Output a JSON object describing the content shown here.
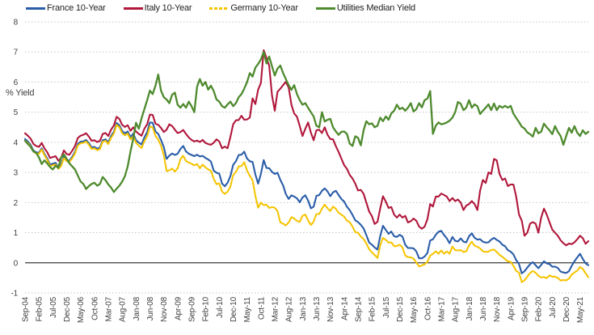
{
  "chart_data": {
    "type": "line",
    "title": "",
    "ylabel": "% Yield",
    "xlabel": "",
    "ylim": [
      -1,
      8
    ],
    "yticks": [
      8,
      7,
      6,
      5,
      4,
      3,
      2,
      1,
      0,
      -1
    ],
    "grid": "horizontal-dotted",
    "grid_color": "#c6c6c6",
    "zero_line_color": "#3c3c3c",
    "tick_text_color": "#3f3f3f",
    "legend_position": "top-left",
    "x_frequency": "monthly",
    "x_first_month": "Sep-04",
    "tick_every_n_points": 5,
    "tick_labels": [
      "Sep-04",
      "Feb-05",
      "Jul-05",
      "Dec-05",
      "May-06",
      "Oct-06",
      "Mar-07",
      "Aug-07",
      "Jan-08",
      "Jun-08",
      "Nov-08",
      "Apr-09",
      "Sep-09",
      "Feb-10",
      "Jul-10",
      "Dec-10",
      "May-11",
      "Oct-11",
      "Mar-12",
      "Aug-12",
      "Jan-13",
      "Jun-13",
      "Nov-13",
      "Apr-14",
      "Sep-14",
      "Feb-15",
      "Jul-15",
      "Dec-15",
      "May-16",
      "Oct-16",
      "Mar-17",
      "Aug-17",
      "Jan-18",
      "Jun-18",
      "Nov-18",
      "Apr-19",
      "Sep-19",
      "Feb-20",
      "Jul-20",
      "Dec-20",
      "May-21"
    ],
    "series": [
      {
        "name": "France 10-Year",
        "color": "#2A5DA8",
        "style": "solid",
        "values": [
          4.11,
          4.03,
          3.92,
          3.73,
          3.67,
          3.65,
          3.8,
          3.61,
          3.46,
          3.26,
          3.29,
          3.32,
          3.17,
          3.26,
          3.53,
          3.41,
          3.39,
          3.52,
          3.68,
          3.94,
          4.02,
          4.03,
          4.08,
          3.97,
          3.83,
          3.85,
          3.79,
          3.83,
          4.07,
          4.1,
          4.0,
          4.21,
          4.35,
          4.64,
          4.57,
          4.37,
          4.3,
          4.36,
          4.17,
          4.29,
          4.07,
          3.99,
          3.93,
          4.16,
          4.34,
          4.66,
          4.65,
          4.36,
          4.28,
          4.08,
          3.84,
          3.45,
          3.56,
          3.63,
          3.58,
          3.62,
          3.78,
          3.88,
          3.7,
          3.62,
          3.58,
          3.54,
          3.59,
          3.53,
          3.55,
          3.48,
          3.43,
          3.36,
          3.06,
          2.99,
          2.96,
          2.63,
          2.54,
          2.66,
          2.88,
          3.25,
          3.37,
          3.58,
          3.59,
          3.69,
          3.46,
          3.37,
          3.35,
          2.93,
          2.63,
          2.95,
          3.41,
          3.15,
          3.14,
          3.02,
          2.95,
          2.99,
          2.75,
          2.57,
          2.28,
          2.12,
          2.24,
          2.2,
          2.14,
          2.01,
          2.17,
          2.24,
          2.07,
          1.81,
          1.86,
          2.22,
          2.25,
          2.39,
          2.47,
          2.37,
          2.21,
          2.34,
          2.39,
          2.25,
          2.12,
          2.03,
          1.86,
          1.75,
          1.59,
          1.41,
          1.35,
          1.26,
          1.14,
          0.92,
          0.67,
          0.6,
          0.51,
          0.44,
          0.89,
          1.23,
          1.09,
          0.96,
          1.04,
          0.88,
          0.86,
          0.93,
          0.87,
          0.6,
          0.49,
          0.49,
          0.48,
          0.38,
          0.15,
          0.15,
          0.21,
          0.33,
          0.74,
          0.78,
          0.93,
          1.03,
          1.06,
          0.92,
          0.81,
          0.65,
          0.86,
          0.73,
          0.71,
          0.81,
          0.7,
          0.68,
          0.88,
          0.98,
          0.83,
          0.77,
          0.78,
          0.7,
          0.67,
          0.68,
          0.77,
          0.83,
          0.76,
          0.71,
          0.6,
          0.55,
          0.42,
          0.37,
          0.28,
          0.09,
          -0.04,
          -0.35,
          -0.28,
          -0.16,
          -0.05,
          0.02,
          -0.08,
          -0.18,
          -0.07,
          0.05,
          -0.02,
          -0.04,
          -0.13,
          -0.13,
          -0.17,
          -0.29,
          -0.32,
          -0.34,
          -0.28,
          -0.1,
          0.05,
          0.18,
          0.3,
          0.13,
          -0.02,
          -0.08
        ]
      },
      {
        "name": "Italy 10-Year",
        "color": "#B0173B",
        "style": "solid",
        "values": [
          4.3,
          4.22,
          4.12,
          3.95,
          3.88,
          3.85,
          3.98,
          3.8,
          3.67,
          3.48,
          3.51,
          3.54,
          3.39,
          3.48,
          3.73,
          3.61,
          3.59,
          3.72,
          3.88,
          4.14,
          4.22,
          4.25,
          4.3,
          4.19,
          4.05,
          4.07,
          4.01,
          4.05,
          4.28,
          4.31,
          4.21,
          4.42,
          4.56,
          4.85,
          4.78,
          4.58,
          4.51,
          4.57,
          4.38,
          4.5,
          4.36,
          4.28,
          4.22,
          4.45,
          4.6,
          4.92,
          4.91,
          4.62,
          4.58,
          4.48,
          4.34,
          4.42,
          4.6,
          4.54,
          4.42,
          4.31,
          4.34,
          4.41,
          4.28,
          4.16,
          4.08,
          4.03,
          4.06,
          4.01,
          4.08,
          3.98,
          3.94,
          3.92,
          3.99,
          4.1,
          4.03,
          3.8,
          3.86,
          3.8,
          4.18,
          4.6,
          4.73,
          4.74,
          4.88,
          4.75,
          4.76,
          4.82,
          5.46,
          5.27,
          5.75,
          5.97,
          7.06,
          6.81,
          6.54,
          5.55,
          5.05,
          5.68,
          5.78,
          5.9,
          6.01,
          5.82,
          5.25,
          4.96,
          4.85,
          4.54,
          4.21,
          4.45,
          4.66,
          4.32,
          4.07,
          4.4,
          4.42,
          4.31,
          4.5,
          4.25,
          4.11,
          4.1,
          3.87,
          3.68,
          3.46,
          3.24,
          3.12,
          2.92,
          2.8,
          2.63,
          2.4,
          2.42,
          2.29,
          2.0,
          1.7,
          1.55,
          1.29,
          1.36,
          1.81,
          2.21,
          2.03,
          1.82,
          1.85,
          1.6,
          1.5,
          1.6,
          1.5,
          1.56,
          1.34,
          1.38,
          1.47,
          1.4,
          1.2,
          1.13,
          1.2,
          1.45,
          1.95,
          1.87,
          2.2,
          2.2,
          2.3,
          2.25,
          2.2,
          2.05,
          2.15,
          2.05,
          2.1,
          2.0,
          1.75,
          1.9,
          1.95,
          2.05,
          1.95,
          1.75,
          2.4,
          2.75,
          2.65,
          3.0,
          2.95,
          3.45,
          3.4,
          2.95,
          2.75,
          2.8,
          2.55,
          2.6,
          2.6,
          2.2,
          1.6,
          1.4,
          0.9,
          1.0,
          1.3,
          1.35,
          1.3,
          1.0,
          1.5,
          1.8,
          1.6,
          1.35,
          1.1,
          1.0,
          0.9,
          0.75,
          0.65,
          0.58,
          0.64,
          0.62,
          0.68,
          0.78,
          0.9,
          0.82,
          0.63,
          0.72
        ]
      },
      {
        "name": "Germany 10-Year",
        "color": "#F5C400",
        "style": "dashed",
        "values": [
          4.05,
          3.98,
          3.87,
          3.69,
          3.63,
          3.62,
          3.76,
          3.57,
          3.41,
          3.21,
          3.24,
          3.27,
          3.12,
          3.21,
          3.48,
          3.37,
          3.35,
          3.47,
          3.63,
          3.89,
          3.97,
          3.98,
          4.03,
          3.92,
          3.78,
          3.8,
          3.74,
          3.78,
          4.02,
          4.05,
          3.94,
          4.15,
          4.29,
          4.58,
          4.5,
          4.3,
          4.23,
          4.29,
          4.09,
          4.21,
          3.98,
          3.89,
          3.81,
          4.04,
          4.2,
          4.52,
          4.5,
          4.21,
          4.09,
          3.89,
          3.57,
          3.05,
          3.07,
          3.13,
          3.03,
          3.14,
          3.44,
          3.55,
          3.38,
          3.33,
          3.29,
          3.23,
          3.28,
          3.14,
          3.26,
          3.17,
          3.1,
          3.06,
          2.78,
          2.61,
          2.64,
          2.36,
          2.29,
          2.36,
          2.53,
          2.91,
          3.02,
          3.2,
          3.21,
          3.34,
          3.06,
          2.89,
          2.74,
          2.22,
          1.83,
          2.0,
          1.91,
          1.93,
          1.82,
          1.85,
          1.83,
          1.72,
          1.34,
          1.3,
          1.24,
          1.34,
          1.52,
          1.47,
          1.39,
          1.36,
          1.56,
          1.6,
          1.41,
          1.25,
          1.37,
          1.62,
          1.62,
          1.8,
          1.93,
          1.81,
          1.72,
          1.87,
          1.79,
          1.66,
          1.6,
          1.53,
          1.4,
          1.35,
          1.2,
          1.02,
          1.0,
          0.87,
          0.79,
          0.64,
          0.45,
          0.35,
          0.26,
          0.16,
          0.58,
          0.83,
          0.76,
          0.67,
          0.68,
          0.55,
          0.56,
          0.6,
          0.51,
          0.24,
          0.19,
          0.18,
          0.14,
          0.01,
          -0.12,
          -0.09,
          -0.05,
          0.03,
          0.24,
          0.3,
          0.38,
          0.3,
          0.41,
          0.3,
          0.38,
          0.3,
          0.54,
          0.42,
          0.41,
          0.42,
          0.36,
          0.38,
          0.58,
          0.7,
          0.57,
          0.53,
          0.48,
          0.38,
          0.36,
          0.37,
          0.43,
          0.44,
          0.36,
          0.26,
          0.2,
          0.12,
          0.05,
          0.03,
          -0.1,
          -0.27,
          -0.33,
          -0.64,
          -0.58,
          -0.46,
          -0.34,
          -0.27,
          -0.33,
          -0.43,
          -0.49,
          -0.47,
          -0.51,
          -0.42,
          -0.46,
          -0.46,
          -0.5,
          -0.59,
          -0.57,
          -0.58,
          -0.53,
          -0.39,
          -0.32,
          -0.26,
          -0.14,
          -0.2,
          -0.35,
          -0.48
        ]
      },
      {
        "name": "Utilities Median Yield",
        "color": "#4E8A2E",
        "style": "solid",
        "values": [
          4.05,
          3.95,
          3.85,
          3.7,
          3.65,
          3.5,
          3.28,
          3.4,
          3.3,
          3.18,
          3.1,
          3.22,
          3.15,
          3.5,
          3.6,
          3.45,
          3.3,
          3.2,
          3.1,
          2.9,
          2.7,
          2.62,
          2.45,
          2.55,
          2.62,
          2.66,
          2.56,
          2.62,
          2.85,
          2.74,
          2.6,
          2.5,
          2.35,
          2.46,
          2.56,
          2.7,
          2.88,
          3.2,
          3.7,
          4.12,
          4.65,
          4.45,
          4.8,
          5.1,
          5.4,
          5.72,
          5.6,
          5.88,
          6.25,
          5.72,
          5.5,
          5.42,
          5.3,
          5.58,
          5.65,
          5.25,
          5.15,
          5.27,
          5.15,
          5.35,
          5.2,
          5.0,
          5.85,
          6.1,
          5.88,
          6.0,
          5.75,
          5.88,
          5.7,
          5.42,
          5.35,
          5.2,
          5.15,
          5.26,
          5.35,
          5.2,
          5.3,
          5.5,
          5.6,
          5.78,
          6.0,
          6.3,
          6.18,
          6.48,
          6.6,
          6.75,
          7.0,
          6.62,
          6.85,
          6.52,
          6.22,
          6.45,
          6.55,
          6.3,
          6.1,
          5.9,
          5.74,
          5.9,
          5.6,
          5.4,
          5.25,
          5.3,
          5.15,
          5.0,
          4.86,
          4.55,
          4.5,
          5.0,
          4.69,
          4.75,
          4.78,
          4.5,
          4.36,
          4.25,
          4.35,
          4.36,
          4.28,
          3.96,
          3.88,
          4.2,
          4.15,
          3.9,
          4.4,
          4.7,
          4.6,
          4.63,
          4.5,
          4.55,
          4.82,
          4.7,
          4.86,
          4.75,
          4.96,
          5.05,
          5.25,
          5.1,
          5.15,
          5.05,
          5.15,
          5.3,
          5.02,
          5.1,
          5.3,
          5.16,
          5.4,
          5.45,
          5.7,
          4.28,
          4.55,
          4.66,
          4.6,
          4.62,
          4.66,
          4.72,
          4.82,
          5.0,
          5.34,
          5.28,
          5.07,
          5.15,
          5.4,
          5.15,
          5.26,
          5.2,
          4.94,
          5.05,
          5.15,
          5.26,
          5.07,
          5.29,
          5.07,
          5.21,
          5.15,
          5.21,
          5.15,
          5.21,
          4.95,
          4.81,
          4.67,
          4.52,
          4.46,
          4.33,
          4.27,
          4.19,
          4.48,
          4.3,
          4.35,
          4.62,
          4.5,
          4.4,
          4.27,
          4.54,
          4.35,
          4.21,
          3.92,
          4.2,
          4.48,
          4.32,
          4.54,
          4.32,
          4.21,
          4.4,
          4.28,
          4.35
        ]
      }
    ]
  }
}
